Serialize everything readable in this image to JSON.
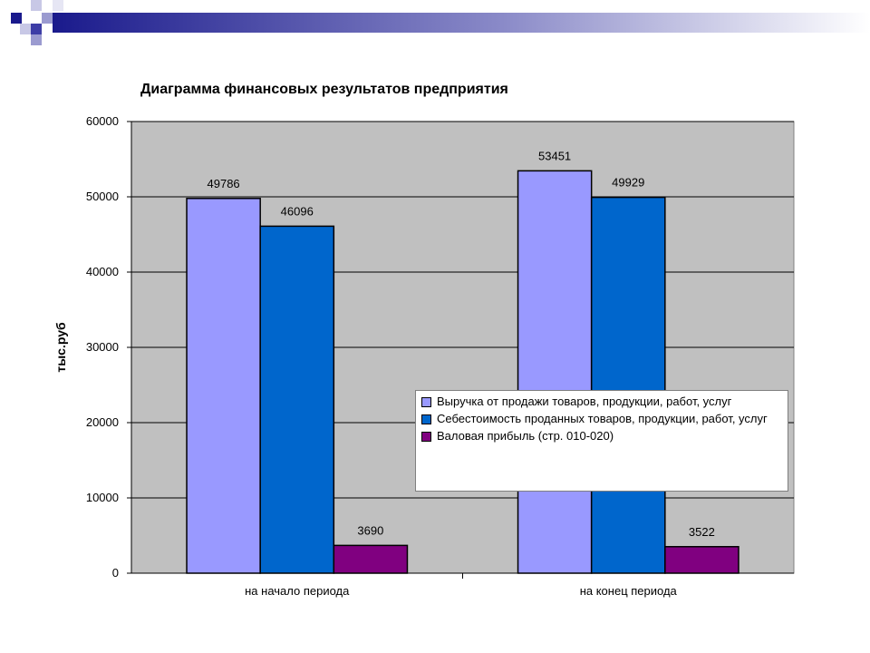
{
  "chart_data": {
    "type": "bar",
    "title": "Диаграмма финансовых результатов предприятия",
    "ylabel": "тыс.руб",
    "xlabel": "",
    "ylim": [
      0,
      60000
    ],
    "yticks": [
      0,
      10000,
      20000,
      30000,
      40000,
      50000,
      60000
    ],
    "categories": [
      "на начало периода",
      "на конец периода"
    ],
    "series": [
      {
        "name": "Выручка от продажи товаров, продукции, работ, услуг",
        "values": [
          49786,
          53451
        ],
        "color": "#9999ff"
      },
      {
        "name": "Себестоимость проданных товаров, продукции, работ, услуг",
        "values": [
          46096,
          49929
        ],
        "color": "#0066cc"
      },
      {
        "name": "Валовая прибыль (стр. 010-020)",
        "values": [
          3690,
          3522
        ],
        "color": "#800080"
      }
    ],
    "grid": true,
    "plot_background": "#c0c0c0",
    "legend_position": "right, overlapping plot"
  }
}
